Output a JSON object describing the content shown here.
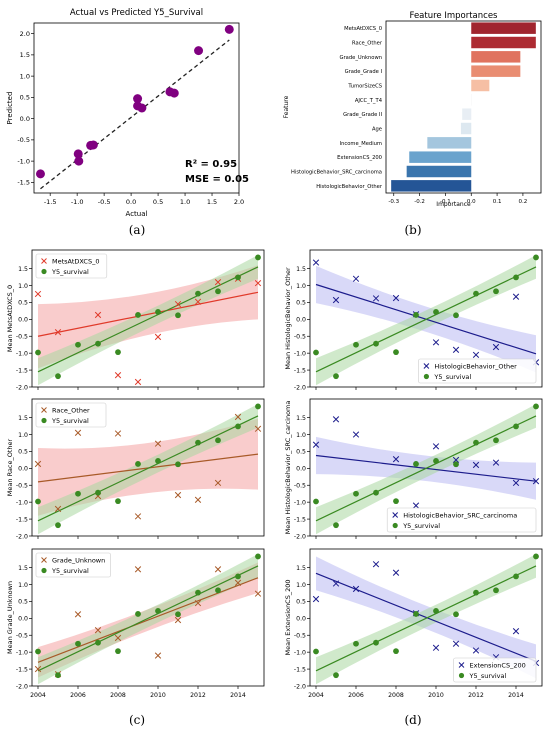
{
  "panel_labels": [
    "(a)",
    "(b)",
    "(c)",
    "(d)"
  ],
  "colors": {
    "purple": "#800080",
    "green": "#3a8a22",
    "red_line": "#e03a2a",
    "red_band": "#f4a3a3",
    "brown_line": "#a85a28",
    "blue_line": "#1c1c8c",
    "blue_band": "#b9b9f2",
    "green_band": "#a9d7a0",
    "dashed": "#222222"
  },
  "chart_data": [
    {
      "id": "a",
      "type": "scatter",
      "title": "Actual vs Predicted Y5_Survival",
      "xlabel": "Actual",
      "ylabel": "Predicted",
      "xlim": [
        -1.8,
        2.0
      ],
      "ylim": [
        -1.75,
        2.25
      ],
      "xticks": [
        -1.5,
        -1.0,
        -0.5,
        0.0,
        0.5,
        1.0,
        1.5,
        2.0
      ],
      "xtick_labels": [
        "-1.5",
        "-1.0",
        "-0.5",
        "0.0",
        "0.5",
        "1.0",
        "1.5",
        "2.0"
      ],
      "yticks": [
        -1.5,
        -1.0,
        -0.5,
        0.0,
        0.5,
        1.0,
        1.5,
        2.0
      ],
      "ytick_labels": [
        "-1.5",
        "-1.0",
        "-0.5",
        "0.0",
        "0.5",
        "1.0",
        "1.5",
        "2.0"
      ],
      "points": [
        {
          "x": -1.68,
          "y": -1.3
        },
        {
          "x": -0.98,
          "y": -0.83
        },
        {
          "x": -0.97,
          "y": -1.0
        },
        {
          "x": -0.75,
          "y": -0.63
        },
        {
          "x": -0.7,
          "y": -0.62
        },
        {
          "x": 0.12,
          "y": 0.47
        },
        {
          "x": 0.12,
          "y": 0.3
        },
        {
          "x": 0.2,
          "y": 0.25
        },
        {
          "x": 0.72,
          "y": 0.63
        },
        {
          "x": 0.8,
          "y": 0.6
        },
        {
          "x": 1.25,
          "y": 1.6
        },
        {
          "x": 1.82,
          "y": 2.1
        }
      ],
      "fit_line": {
        "x": [
          -1.68,
          1.82
        ],
        "y": [
          -1.65,
          1.85
        ]
      },
      "annotations": [
        "R² = 0.95",
        "MSE = 0.05"
      ]
    },
    {
      "id": "b",
      "type": "bar",
      "orientation": "horizontal",
      "title": "Feature Importances",
      "xlabel": "Importance",
      "ylabel": "Feature",
      "xlim": [
        -0.33,
        0.27
      ],
      "xticks": [
        -0.3,
        -0.2,
        -0.1,
        0.0,
        0.1,
        0.2
      ],
      "xtick_labels": [
        "-0.3",
        "-0.2",
        "-0.1",
        "0.0",
        "0.1",
        "0.2"
      ],
      "categories": [
        "MetsAtDXCS_0",
        "Race_Other",
        "Grade_Unknown",
        "Grade_Grade I",
        "TumorSizeCS",
        "AJCC_T_T4",
        "Grade_Grade II",
        "Age",
        "Income_Medium",
        "ExtensionCS_200",
        "HistologicBehavior_SRC_carcinoma",
        "HistologicBehavior_Other"
      ],
      "values": [
        0.25,
        0.25,
        0.19,
        0.19,
        0.07,
        0.0,
        -0.035,
        -0.04,
        -0.17,
        -0.24,
        -0.25,
        -0.31
      ],
      "bar_colors": [
        "#a0252e",
        "#ad2b32",
        "#e0735f",
        "#e98d72",
        "#f6bfa4",
        "#f7f7f7",
        "#e8eef4",
        "#dde8f0",
        "#a4c6de",
        "#6aa3cd",
        "#3a75ad",
        "#245596"
      ]
    },
    {
      "id": "c1",
      "type": "line",
      "xlim": [
        2003.7,
        2015.3
      ],
      "ylim": [
        -2.0,
        2.05
      ],
      "xticks": [
        2004,
        2006,
        2008,
        2010,
        2012,
        2014
      ],
      "xtick_labels": [
        "2004",
        "2006",
        "2008",
        "2010",
        "2012",
        "2014"
      ],
      "yticks": [
        -2.0,
        -1.5,
        -1.0,
        -0.5,
        0.0,
        0.5,
        1.0,
        1.5
      ],
      "ytick_labels": [
        "-2.0",
        "-1.5",
        "-1.0",
        "-0.5",
        "0.0",
        "0.5",
        "1.0",
        "1.5"
      ],
      "ylabel": "Mean MetsAtDXCS_0",
      "legend_position": "top-left",
      "feature": {
        "name": "MetsAtDXCS_0",
        "color": "#e03a2a",
        "band_color": "#f4a3a3",
        "x": [
          2004,
          2005,
          2007,
          2008,
          2009,
          2010,
          2011,
          2012,
          2013,
          2014,
          2015
        ],
        "y": [
          0.75,
          -0.38,
          0.13,
          -1.65,
          -1.85,
          -0.52,
          0.45,
          0.52,
          1.1,
          1.2,
          1.07
        ],
        "fit": [
          -0.5,
          0.8
        ],
        "band_halfwidth": [
          0.95,
          0.35,
          0.8
        ]
      },
      "survival": {
        "name": "Y5_survival",
        "x": [
          2004,
          2005,
          2006,
          2007,
          2008,
          2009,
          2010,
          2011,
          2012,
          2013,
          2014,
          2015
        ],
        "y": [
          -0.98,
          -1.68,
          -0.75,
          -0.72,
          -0.97,
          0.13,
          0.22,
          0.12,
          0.76,
          0.83,
          1.24,
          1.83
        ],
        "fit": [
          -1.55,
          1.55
        ],
        "band_halfwidth": [
          0.4,
          0.15,
          0.35
        ]
      }
    },
    {
      "id": "c2",
      "type": "line",
      "xlim": [
        2003.7,
        2015.3
      ],
      "ylim": [
        -2.0,
        2.05
      ],
      "xticks": [
        2004,
        2006,
        2008,
        2010,
        2012,
        2014
      ],
      "xtick_labels": [
        "2004",
        "2006",
        "2008",
        "2010",
        "2012",
        "2014"
      ],
      "yticks": [
        -2.0,
        -1.5,
        -1.0,
        -0.5,
        0.0,
        0.5,
        1.0,
        1.5
      ],
      "ytick_labels": [
        "-2.0",
        "-1.5",
        "-1.0",
        "-0.5",
        "0.0",
        "0.5",
        "1.0",
        "1.5"
      ],
      "ylabel": "Mean Race_Other",
      "legend_position": "top-left",
      "feature": {
        "name": "Race_Other",
        "color": "#a85a28",
        "band_color": "#f4a3a3",
        "x": [
          2004,
          2005,
          2006,
          2007,
          2008,
          2009,
          2010,
          2011,
          2012,
          2013,
          2014,
          2015
        ],
        "y": [
          0.13,
          -1.2,
          1.05,
          -0.82,
          1.03,
          -1.42,
          0.73,
          -0.79,
          -0.93,
          -0.43,
          1.52,
          1.17
        ],
        "fit": [
          -0.4,
          0.42
        ],
        "band_halfwidth": [
          1.0,
          0.45,
          1.05
        ]
      },
      "survival": {
        "name": "Y5_survival",
        "x": [
          2004,
          2005,
          2006,
          2007,
          2008,
          2009,
          2010,
          2011,
          2012,
          2013,
          2014,
          2015
        ],
        "y": [
          -0.98,
          -1.68,
          -0.75,
          -0.72,
          -0.97,
          0.13,
          0.22,
          0.12,
          0.76,
          0.83,
          1.24,
          1.83
        ],
        "fit": [
          -1.55,
          1.55
        ],
        "band_halfwidth": [
          0.4,
          0.15,
          0.35
        ]
      }
    },
    {
      "id": "c3",
      "type": "line",
      "xlim": [
        2003.7,
        2015.3
      ],
      "ylim": [
        -2.0,
        2.05
      ],
      "xticks": [
        2004,
        2006,
        2008,
        2010,
        2012,
        2014
      ],
      "xtick_labels": [
        "2004",
        "2006",
        "2008",
        "2010",
        "2012",
        "2014"
      ],
      "yticks": [
        -2.0,
        -1.5,
        -1.0,
        -0.5,
        0.0,
        0.5,
        1.0,
        1.5
      ],
      "ytick_labels": [
        "-2.0",
        "-1.5",
        "-1.0",
        "-0.5",
        "0.0",
        "0.5",
        "1.0",
        "1.5"
      ],
      "ylabel": "Mean Grade_Unknown",
      "legend_position": "top-left",
      "feature": {
        "name": "Grade_Unknown",
        "color": "#a85a28",
        "band_color": "#f4a3a3",
        "x": [
          2004,
          2005,
          2006,
          2007,
          2008,
          2009,
          2010,
          2011,
          2012,
          2013,
          2014,
          2015
        ],
        "y": [
          -1.5,
          -1.65,
          0.12,
          -0.35,
          -0.58,
          1.45,
          -1.1,
          -0.05,
          0.45,
          1.45,
          1.05,
          0.73
        ],
        "fit": [
          -1.3,
          1.2
        ],
        "band_halfwidth": [
          0.45,
          0.18,
          0.45
        ]
      },
      "survival": {
        "name": "Y5_survival",
        "x": [
          2004,
          2005,
          2006,
          2007,
          2008,
          2009,
          2010,
          2011,
          2012,
          2013,
          2014,
          2015
        ],
        "y": [
          -0.98,
          -1.68,
          -0.75,
          -0.72,
          -0.97,
          0.13,
          0.22,
          0.12,
          0.76,
          0.83,
          1.24,
          1.83
        ],
        "fit": [
          -1.55,
          1.55
        ],
        "band_halfwidth": [
          0.4,
          0.15,
          0.35
        ]
      }
    },
    {
      "id": "d1",
      "type": "line",
      "xlim": [
        2003.7,
        2015.3
      ],
      "ylim": [
        -2.0,
        2.05
      ],
      "xticks": [
        2004,
        2006,
        2008,
        2010,
        2012,
        2014
      ],
      "xtick_labels": [
        "2004",
        "2006",
        "2008",
        "2010",
        "2012",
        "2014"
      ],
      "yticks": [
        -2.0,
        -1.5,
        -1.0,
        -0.5,
        0.0,
        0.5,
        1.0,
        1.5
      ],
      "ytick_labels": [
        "-2.0",
        "-1.5",
        "-1.0",
        "-0.5",
        "0.0",
        "0.5",
        "1.0",
        "1.5"
      ],
      "ylabel": "Mean HistologicBehavior_Other",
      "legend_position": "lower-right",
      "feature": {
        "name": "HistologicBehavior_Other",
        "color": "#1c1c8c",
        "band_color": "#b9b9f2",
        "x": [
          2004,
          2005,
          2006,
          2007,
          2008,
          2009,
          2010,
          2011,
          2012,
          2013,
          2014,
          2015
        ],
        "y": [
          1.68,
          0.57,
          1.2,
          0.62,
          0.63,
          0.15,
          -0.68,
          -0.9,
          -1.05,
          -0.82,
          0.67,
          -1.27
        ],
        "fit": [
          1.03,
          -1.02
        ],
        "band_halfwidth": [
          0.55,
          0.2,
          0.55
        ]
      },
      "survival": {
        "name": "Y5_survival",
        "x": [
          2004,
          2005,
          2006,
          2007,
          2008,
          2009,
          2010,
          2011,
          2012,
          2013,
          2014,
          2015
        ],
        "y": [
          -0.98,
          -1.68,
          -0.75,
          -0.72,
          -0.97,
          0.13,
          0.22,
          0.12,
          0.76,
          0.83,
          1.24,
          1.83
        ],
        "fit": [
          -1.55,
          1.55
        ],
        "band_halfwidth": [
          0.4,
          0.15,
          0.35
        ]
      }
    },
    {
      "id": "d2",
      "type": "line",
      "xlim": [
        2003.7,
        2015.3
      ],
      "ylim": [
        -2.0,
        2.05
      ],
      "xticks": [
        2004,
        2006,
        2008,
        2010,
        2012,
        2014
      ],
      "xtick_labels": [
        "2004",
        "2006",
        "2008",
        "2010",
        "2012",
        "2014"
      ],
      "yticks": [
        -2.0,
        -1.5,
        -1.0,
        -0.5,
        0.0,
        0.5,
        1.0,
        1.5
      ],
      "ytick_labels": [
        "-2.0",
        "-1.5",
        "-1.0",
        "-0.5",
        "0.0",
        "0.5",
        "1.0",
        "1.5"
      ],
      "ylabel": "Mean HistologicBehavior_SRC_carcinoma",
      "legend_position": "lower-right",
      "feature": {
        "name": "HistologicBehavior_SRC_carcinoma",
        "color": "#1c1c8c",
        "band_color": "#b9b9f2",
        "x": [
          2004,
          2005,
          2006,
          2008,
          2009,
          2010,
          2011,
          2012,
          2013,
          2014,
          2015
        ],
        "y": [
          0.7,
          1.45,
          1.0,
          0.27,
          -1.1,
          0.65,
          0.25,
          0.1,
          0.17,
          -0.43,
          -0.38
        ],
        "fit": [
          0.38,
          -0.38
        ],
        "band_halfwidth": [
          0.55,
          0.2,
          0.55
        ]
      },
      "survival": {
        "name": "Y5_survival",
        "x": [
          2004,
          2005,
          2006,
          2007,
          2008,
          2009,
          2010,
          2011,
          2012,
          2013,
          2014,
          2015
        ],
        "y": [
          -0.98,
          -1.68,
          -0.75,
          -0.72,
          -0.97,
          0.13,
          0.22,
          0.12,
          0.76,
          0.83,
          1.24,
          1.83
        ],
        "fit": [
          -1.55,
          1.55
        ],
        "band_halfwidth": [
          0.4,
          0.15,
          0.35
        ]
      }
    },
    {
      "id": "d3",
      "type": "line",
      "xlim": [
        2003.7,
        2015.3
      ],
      "ylim": [
        -2.0,
        2.05
      ],
      "xticks": [
        2004,
        2006,
        2008,
        2010,
        2012,
        2014
      ],
      "xtick_labels": [
        "2004",
        "2006",
        "2008",
        "2010",
        "2012",
        "2014"
      ],
      "yticks": [
        -2.0,
        -1.5,
        -1.0,
        -0.5,
        0.0,
        0.5,
        1.0,
        1.5
      ],
      "ytick_labels": [
        "-2.0",
        "-1.5",
        "-1.0",
        "-0.5",
        "0.0",
        "0.5",
        "1.0",
        "1.5"
      ],
      "ylabel": "Mean ExtensionCS_200",
      "legend_position": "lower-right",
      "feature": {
        "name": "ExtensionCS_200",
        "color": "#1c1c8c",
        "band_color": "#b9b9f2",
        "x": [
          2004,
          2005,
          2006,
          2007,
          2008,
          2009,
          2010,
          2011,
          2012,
          2013,
          2014,
          2015
        ],
        "y": [
          0.57,
          1.03,
          0.87,
          1.6,
          1.35,
          0.15,
          -0.87,
          -0.75,
          -0.95,
          -1.15,
          -0.38,
          -1.32
        ],
        "fit": [
          1.33,
          -1.27
        ],
        "band_halfwidth": [
          0.5,
          0.18,
          0.5
        ]
      },
      "survival": {
        "name": "Y5_survival",
        "x": [
          2004,
          2005,
          2006,
          2007,
          2008,
          2009,
          2010,
          2011,
          2012,
          2013,
          2014,
          2015
        ],
        "y": [
          -0.98,
          -1.68,
          -0.75,
          -0.72,
          -0.97,
          0.13,
          0.22,
          0.12,
          0.76,
          0.83,
          1.24,
          1.83
        ],
        "fit": [
          -1.55,
          1.55
        ],
        "band_halfwidth": [
          0.4,
          0.15,
          0.35
        ]
      }
    }
  ]
}
